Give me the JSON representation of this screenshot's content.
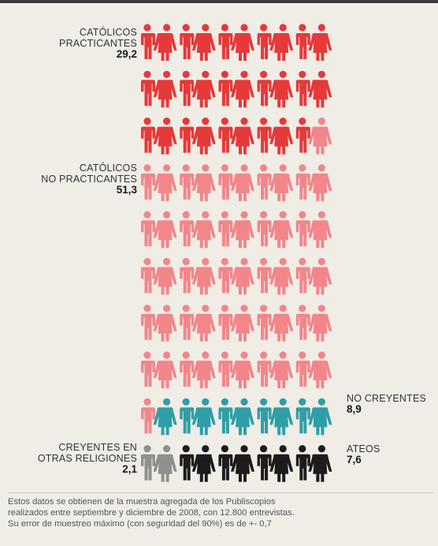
{
  "chart_data": {
    "type": "pictogram",
    "unit_note": "each figure ≈ 1%",
    "series": [
      {
        "name_lines": [
          "CATÓLICOS",
          "PRACTICANTES"
        ],
        "value": "29,2",
        "value_num": 29.2,
        "count": 29,
        "color": "#e5393a"
      },
      {
        "name_lines": [
          "CATÓLICOS",
          "NO PRACTICANTES"
        ],
        "value": "51,3",
        "value_num": 51.3,
        "count": 52,
        "color": "#f2868a"
      },
      {
        "name_lines": [
          "NO CREYENTES"
        ],
        "value": "8,9",
        "value_num": 8.9,
        "count": 9,
        "color": "#2f9ea7"
      },
      {
        "name_lines": [
          "CREYENTES EN",
          "OTRAS RELIGIONES"
        ],
        "value": "2,1",
        "value_num": 2.1,
        "count": 2,
        "color": "#8f8f8f"
      },
      {
        "name_lines": [
          "ATEOS"
        ],
        "value": "7,6",
        "value_num": 7.6,
        "count": 8,
        "color": "#1c1c1c"
      }
    ]
  },
  "footnote": [
    "Estos datos se obtienen de la muestra agregada de los Publiscopios",
    "realizados entre septiembre y diciembre de 2008, con 12.800 entrevistas.",
    "Su error de muestreo máximo (con seguridad del 90%) es de  +- 0,7"
  ]
}
